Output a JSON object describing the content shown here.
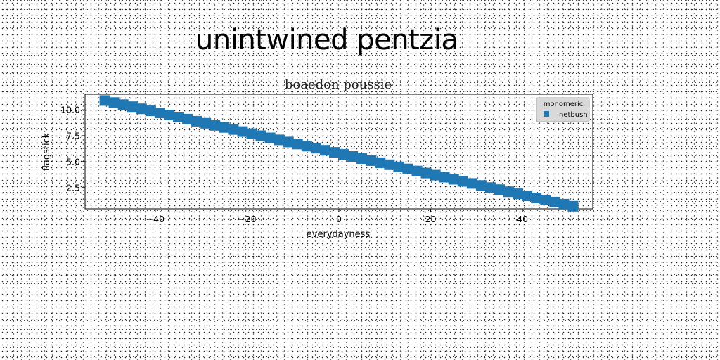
{
  "figure": {
    "suptitle": "unintwined pentzia"
  },
  "chart_data": {
    "type": "scatter",
    "title": "boaedon poussie",
    "xlabel": "everydayness",
    "ylabel": "flagstick",
    "xlim": [
      -55.3,
      55.3
    ],
    "ylim": [
      0.45,
      11.5
    ],
    "x_ticks": [
      -40,
      -20,
      0,
      20,
      40
    ],
    "x_tick_labels": [
      "−40",
      "−20",
      "0",
      "20",
      "40"
    ],
    "y_ticks": [
      2.5,
      5.0,
      7.5,
      10.0
    ],
    "y_tick_labels": [
      "2.5",
      "5.0",
      "7.5",
      "10.0"
    ],
    "grid": false,
    "legend": {
      "title": "monomeric",
      "placement": "top-right",
      "entries": [
        {
          "label": "netbush",
          "color": "#1f77b4",
          "marker": "square"
        }
      ]
    },
    "series": [
      {
        "name": "netbush",
        "color": "#1f77b4",
        "marker": "square",
        "x": [
          -51,
          -49,
          -47,
          -45,
          -43,
          -41,
          -39,
          -37,
          -35,
          -33,
          -31,
          -29,
          -27,
          -25,
          -23,
          -21,
          -19,
          -17,
          -15,
          -13,
          -11,
          -9,
          -7,
          -5,
          -3,
          -1,
          1,
          3,
          5,
          7,
          9,
          11,
          13,
          15,
          17,
          19,
          21,
          23,
          25,
          27,
          29,
          31,
          33,
          35,
          37,
          39,
          41,
          43,
          45,
          47,
          49,
          51
        ],
        "y": [
          10.9,
          10.7,
          10.5,
          10.3,
          10.1,
          9.9,
          9.7,
          9.5,
          9.3,
          9.1,
          8.9,
          8.7,
          8.5,
          8.3,
          8.1,
          7.9,
          7.7,
          7.5,
          7.3,
          7.1,
          6.9,
          6.7,
          6.5,
          6.3,
          6.1,
          5.9,
          5.7,
          5.5,
          5.3,
          5.1,
          4.9,
          4.7,
          4.5,
          4.3,
          4.1,
          3.9,
          3.7,
          3.5,
          3.3,
          3.1,
          2.9,
          2.7,
          2.5,
          2.3,
          2.1,
          1.9,
          1.7,
          1.5,
          1.3,
          1.1,
          0.9,
          0.7
        ]
      }
    ]
  }
}
